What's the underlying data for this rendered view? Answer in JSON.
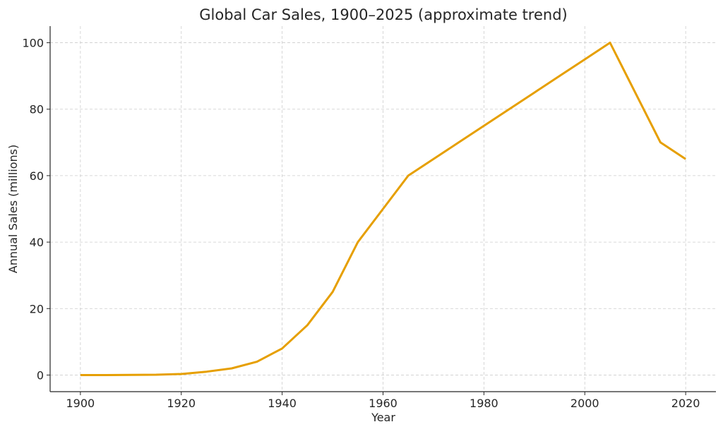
{
  "chart_data": {
    "type": "line",
    "title": "Global Car Sales, 1900–2025 (approximate trend)",
    "xlabel": "Year",
    "ylabel": "Annual Sales (millions)",
    "xlim": [
      1894,
      2026
    ],
    "ylim": [
      -5,
      105
    ],
    "xticks": [
      1900,
      1920,
      1940,
      1960,
      1980,
      2000,
      2020
    ],
    "yticks": [
      0,
      20,
      40,
      60,
      80,
      100
    ],
    "grid": true,
    "series": [
      {
        "name": "Global Car Sales",
        "color": "#E69F00",
        "x": [
          1900,
          1905,
          1910,
          1915,
          1920,
          1925,
          1930,
          1935,
          1940,
          1945,
          1950,
          1955,
          1960,
          1965,
          1970,
          1975,
          1980,
          1985,
          1990,
          1995,
          2000,
          2005,
          2010,
          2015,
          2020
        ],
        "y": [
          0,
          0,
          0.05,
          0.1,
          0.3,
          1,
          2,
          4,
          8,
          15,
          25,
          40,
          50,
          60,
          65,
          70,
          75,
          80,
          85,
          90,
          95,
          100,
          85,
          70,
          65
        ]
      }
    ]
  }
}
